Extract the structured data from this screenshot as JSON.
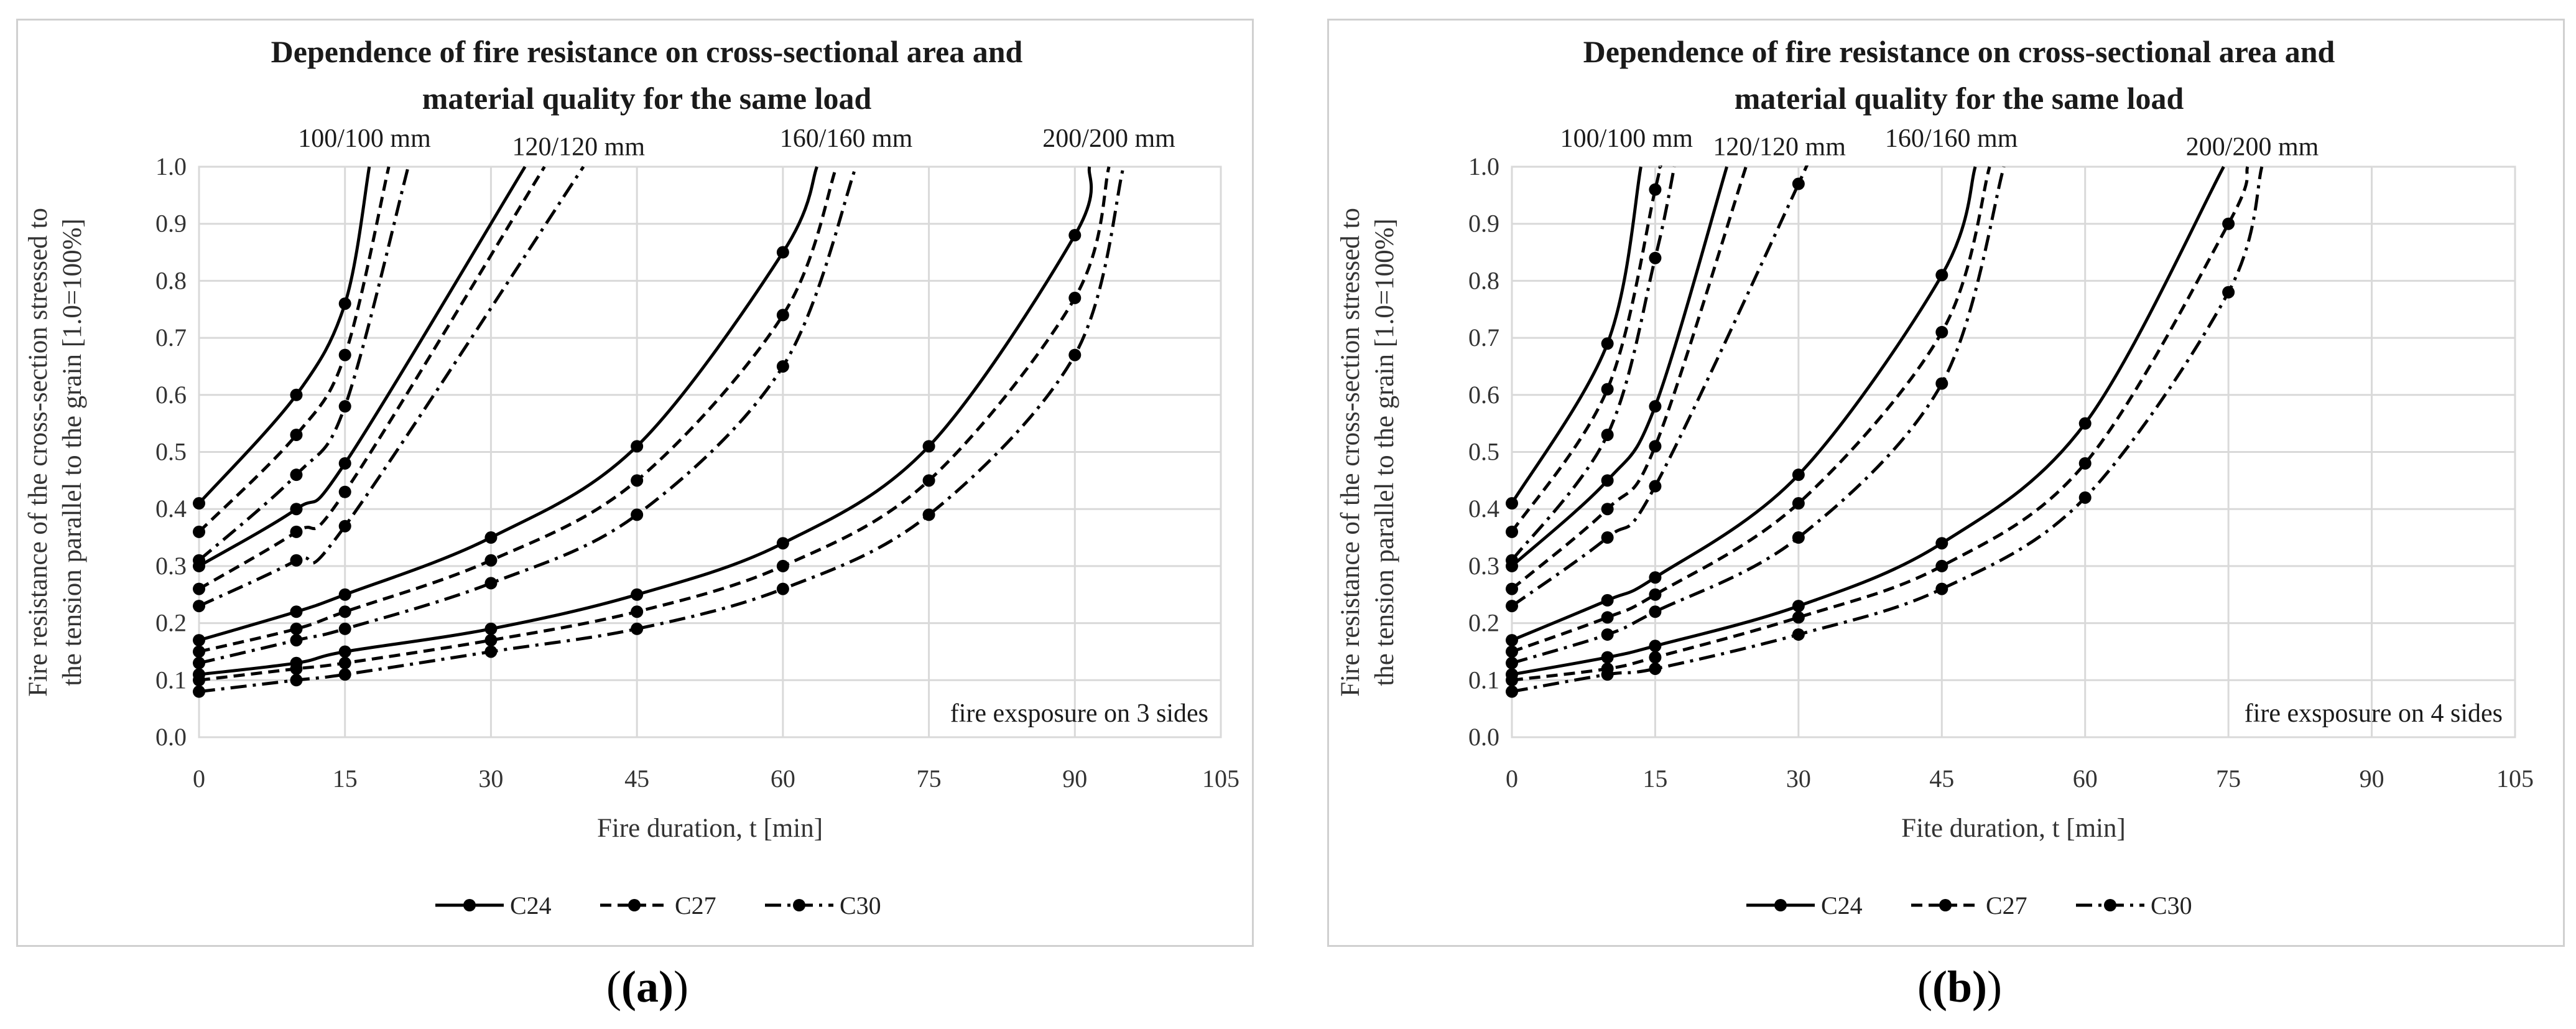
{
  "panel_labels": [
    "(a)",
    "(b)"
  ],
  "chart_data": [
    {
      "type": "line",
      "title_lines": [
        "Dependence of fire resistance on cross-sectional area and",
        "material quality for the same load"
      ],
      "xlabel": "Fire duration, t [min]",
      "ylabel_lines": [
        "Fire resistance of the cross-section stressed to",
        "the tension parallel to the grain [1.0=100%]"
      ],
      "xlim": [
        0,
        105
      ],
      "ylim": [
        0,
        1.0
      ],
      "xticks": [
        0,
        15,
        30,
        45,
        60,
        75,
        90,
        105
      ],
      "xtick_labels": [
        "0",
        "15",
        "30",
        "45",
        "60",
        "75",
        "90",
        "105"
      ],
      "yticks": [
        0,
        0.1,
        0.2,
        0.3,
        0.4,
        0.5,
        0.6,
        0.7,
        0.8,
        0.9,
        1.0
      ],
      "ytick_labels": [
        "0.0",
        "0.1",
        "0.2",
        "0.3",
        "0.4",
        "0.5",
        "0.6",
        "0.7",
        "0.8",
        "0.9",
        "1.0"
      ],
      "grid": true,
      "annotation": "fire exsposure on 3 sides",
      "section_labels": [
        {
          "text": "100/100 mm",
          "x": 17,
          "y": 1.035
        },
        {
          "text": "120/120 mm",
          "x": 39,
          "y": 1.02
        },
        {
          "text": "160/160 mm",
          "x": 66.5,
          "y": 1.035
        },
        {
          "text": "200/200 mm",
          "x": 93.5,
          "y": 1.035
        }
      ],
      "legend": [
        {
          "name": "C24",
          "style": "solid"
        },
        {
          "name": "C27",
          "style": "dashed"
        },
        {
          "name": "C30",
          "style": "dashdot"
        }
      ],
      "series": [
        {
          "name": "C24",
          "section": "100/100 mm",
          "style": "solid",
          "x": [
            0,
            10,
            15,
            17.5
          ],
          "y": [
            0.41,
            0.6,
            0.76,
            1.0
          ]
        },
        {
          "name": "C27",
          "section": "100/100 mm",
          "style": "dashed",
          "x": [
            0,
            10,
            15,
            19.5
          ],
          "y": [
            0.36,
            0.53,
            0.67,
            1.0
          ]
        },
        {
          "name": "C30",
          "section": "100/100 mm",
          "style": "dashdot",
          "x": [
            0,
            10,
            15,
            21.5
          ],
          "y": [
            0.31,
            0.46,
            0.58,
            1.0
          ]
        },
        {
          "name": "C24",
          "section": "120/120 mm",
          "style": "solid",
          "x": [
            0,
            10,
            15,
            33.5
          ],
          "y": [
            0.3,
            0.4,
            0.48,
            1.0
          ]
        },
        {
          "name": "C27",
          "section": "120/120 mm",
          "style": "dashed",
          "x": [
            0,
            10,
            15,
            35.5
          ],
          "y": [
            0.26,
            0.36,
            0.43,
            1.0
          ]
        },
        {
          "name": "C30",
          "section": "120/120 mm",
          "style": "dashdot",
          "x": [
            0,
            10,
            15,
            39.5
          ],
          "y": [
            0.23,
            0.31,
            0.37,
            1.0
          ]
        },
        {
          "name": "C24",
          "section": "160/160 mm",
          "style": "solid",
          "x": [
            0,
            10,
            15,
            30,
            45,
            60,
            63.5
          ],
          "y": [
            0.17,
            0.22,
            0.25,
            0.35,
            0.51,
            0.85,
            1.0
          ]
        },
        {
          "name": "C27",
          "section": "160/160 mm",
          "style": "dashed",
          "x": [
            0,
            10,
            15,
            30,
            45,
            60,
            65.5
          ],
          "y": [
            0.15,
            0.19,
            0.22,
            0.31,
            0.45,
            0.74,
            1.0
          ]
        },
        {
          "name": "C30",
          "section": "160/160 mm",
          "style": "dashdot",
          "x": [
            0,
            10,
            15,
            30,
            45,
            60,
            67.5
          ],
          "y": [
            0.13,
            0.17,
            0.19,
            0.27,
            0.39,
            0.65,
            1.0
          ]
        },
        {
          "name": "C24",
          "section": "200/200 mm",
          "style": "solid",
          "x": [
            0,
            10,
            15,
            30,
            45,
            60,
            75,
            90,
            91.5
          ],
          "y": [
            0.11,
            0.13,
            0.15,
            0.19,
            0.25,
            0.34,
            0.51,
            0.88,
            1.0
          ]
        },
        {
          "name": "C27",
          "section": "200/200 mm",
          "style": "dashed",
          "x": [
            0,
            10,
            15,
            30,
            45,
            60,
            75,
            90,
            93.5
          ],
          "y": [
            0.1,
            0.12,
            0.13,
            0.17,
            0.22,
            0.3,
            0.45,
            0.77,
            1.0
          ]
        },
        {
          "name": "C30",
          "section": "200/200 mm",
          "style": "dashdot",
          "x": [
            0,
            10,
            15,
            30,
            45,
            60,
            75,
            90,
            95
          ],
          "y": [
            0.08,
            0.1,
            0.11,
            0.15,
            0.19,
            0.26,
            0.39,
            0.67,
            1.0
          ]
        }
      ]
    },
    {
      "type": "line",
      "title_lines": [
        "Dependence of fire resistance on cross-sectional area and",
        "material quality for the same load"
      ],
      "xlabel": "Fite duration, t [min]",
      "ylabel_lines": [
        "Fire resistance of the cross-section stressed to",
        "the tension parallel to the grain [1.0=100%]"
      ],
      "xlim": [
        0,
        105
      ],
      "ylim": [
        0,
        1.0
      ],
      "xticks": [
        0,
        15,
        30,
        45,
        60,
        75,
        90,
        105
      ],
      "xtick_labels": [
        "0",
        "15",
        "30",
        "45",
        "60",
        "75",
        "90",
        "105"
      ],
      "yticks": [
        0,
        0.1,
        0.2,
        0.3,
        0.4,
        0.5,
        0.6,
        0.7,
        0.8,
        0.9,
        1.0
      ],
      "ytick_labels": [
        "0.0",
        "0.1",
        "0.2",
        "0.3",
        "0.4",
        "0.5",
        "0.6",
        "0.7",
        "0.8",
        "0.9",
        "1.0"
      ],
      "grid": true,
      "annotation": "fire exsposure on 4 sides",
      "section_labels": [
        {
          "text": "100/100 mm",
          "x": 12,
          "y": 1.035
        },
        {
          "text": "120/120 mm",
          "x": 28,
          "y": 1.02
        },
        {
          "text": "160/160 mm",
          "x": 46,
          "y": 1.035
        },
        {
          "text": "200/200 mm",
          "x": 77.5,
          "y": 1.02
        }
      ],
      "legend": [
        {
          "name": "C24",
          "style": "solid"
        },
        {
          "name": "C27",
          "style": "dashed"
        },
        {
          "name": "C30",
          "style": "dashdot"
        }
      ],
      "series": [
        {
          "name": "C24",
          "section": "100/100 mm",
          "style": "solid",
          "x": [
            0,
            10,
            13.5
          ],
          "y": [
            0.41,
            0.69,
            1.0
          ]
        },
        {
          "name": "C27",
          "section": "100/100 mm",
          "style": "dashed",
          "x": [
            0,
            10,
            15,
            15.5
          ],
          "y": [
            0.36,
            0.61,
            0.96,
            1.0
          ]
        },
        {
          "name": "C30",
          "section": "100/100 mm",
          "style": "dashdot",
          "x": [
            0,
            10,
            15,
            17
          ],
          "y": [
            0.31,
            0.53,
            0.84,
            1.0
          ]
        },
        {
          "name": "C24",
          "section": "120/120 mm",
          "style": "solid",
          "x": [
            0,
            10,
            15,
            22.5
          ],
          "y": [
            0.3,
            0.45,
            0.58,
            1.0
          ]
        },
        {
          "name": "C27",
          "section": "120/120 mm",
          "style": "dashed",
          "x": [
            0,
            10,
            15,
            24.5
          ],
          "y": [
            0.26,
            0.4,
            0.51,
            1.0
          ]
        },
        {
          "name": "C30",
          "section": "120/120 mm",
          "style": "dashdot",
          "x": [
            0,
            10,
            15,
            30,
            30.5
          ],
          "y": [
            0.23,
            0.35,
            0.44,
            0.97,
            1.0
          ]
        },
        {
          "name": "C24",
          "section": "160/160 mm",
          "style": "solid",
          "x": [
            0,
            10,
            15,
            30,
            45,
            48.5
          ],
          "y": [
            0.17,
            0.24,
            0.28,
            0.46,
            0.81,
            1.0
          ]
        },
        {
          "name": "C27",
          "section": "160/160 mm",
          "style": "dashed",
          "x": [
            0,
            10,
            15,
            30,
            45,
            50
          ],
          "y": [
            0.15,
            0.21,
            0.25,
            0.41,
            0.71,
            1.0
          ]
        },
        {
          "name": "C30",
          "section": "160/160 mm",
          "style": "dashdot",
          "x": [
            0,
            10,
            15,
            30,
            45,
            51.5
          ],
          "y": [
            0.13,
            0.18,
            0.22,
            0.35,
            0.62,
            1.0
          ]
        },
        {
          "name": "C24",
          "section": "200/200 mm",
          "style": "solid",
          "x": [
            0,
            10,
            15,
            30,
            45,
            60,
            74.5
          ],
          "y": [
            0.11,
            0.14,
            0.16,
            0.23,
            0.34,
            0.55,
            1.0
          ]
        },
        {
          "name": "C27",
          "section": "200/200 mm",
          "style": "dashed",
          "x": [
            0,
            10,
            15,
            30,
            45,
            60,
            75,
            77
          ],
          "y": [
            0.1,
            0.12,
            0.14,
            0.21,
            0.3,
            0.48,
            0.9,
            1.0
          ]
        },
        {
          "name": "C30",
          "section": "200/200 mm",
          "style": "dashdot",
          "x": [
            0,
            10,
            15,
            30,
            45,
            60,
            75,
            78.5
          ],
          "y": [
            0.08,
            0.11,
            0.12,
            0.18,
            0.26,
            0.42,
            0.78,
            1.0
          ]
        }
      ]
    }
  ]
}
